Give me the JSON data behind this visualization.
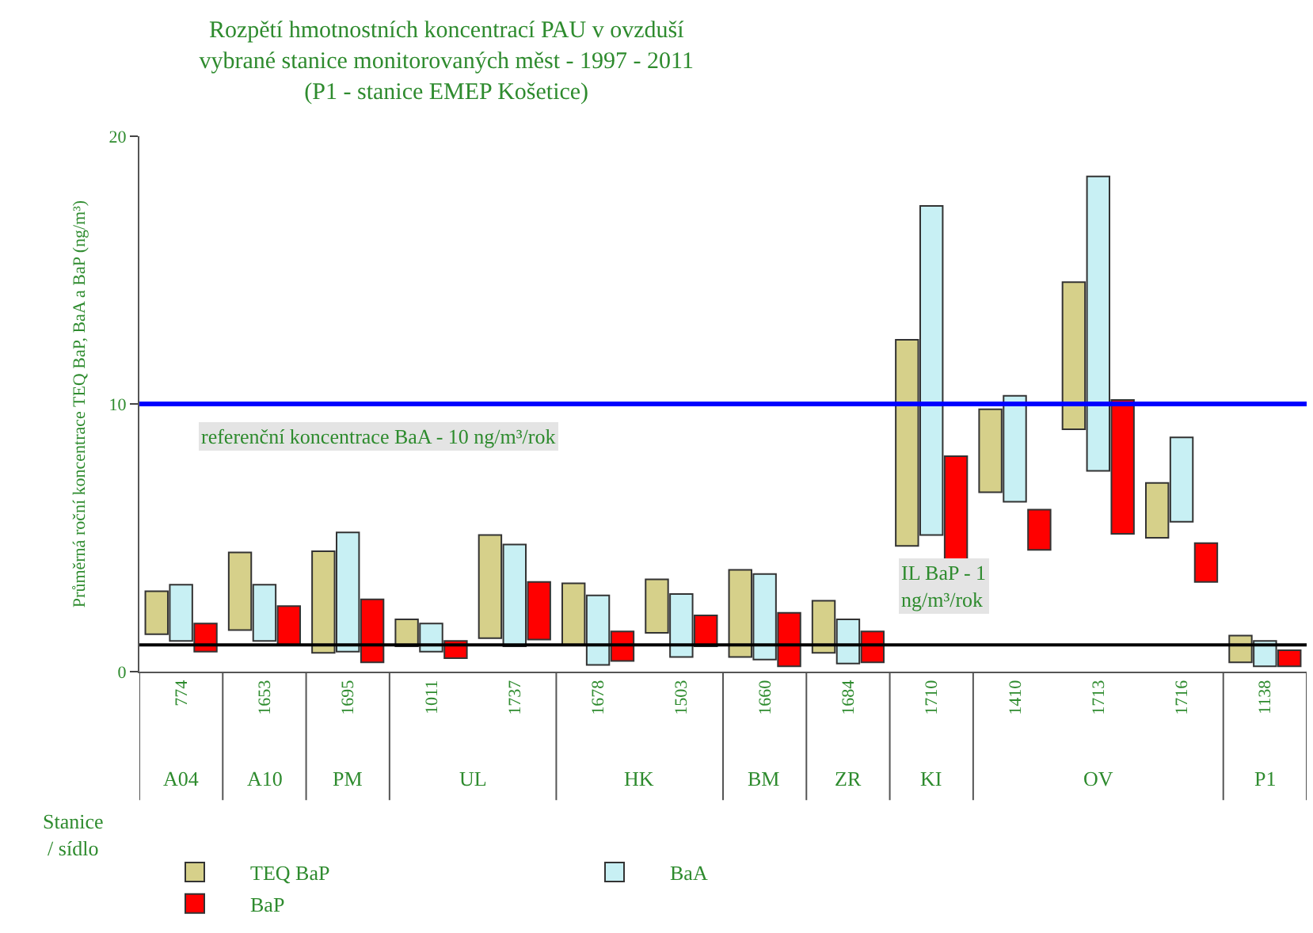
{
  "chart_data": {
    "type": "bar",
    "title": "Rozpětí hmotnostních koncentrací PAU v ovzduší\nvybrané stanice monitorovaných měst - 1997 - 2011\n(P1 - stanice EMEP Košetice)",
    "ylabel": "Průměrná roční koncentrace TEQ BaP, BaA a BaP (ng/m³)",
    "categories": [
      "774",
      "1653",
      "1695",
      "1011",
      "1737",
      "1678",
      "1503",
      "1660",
      "1684",
      "1710",
      "1410",
      "1713",
      "1716",
      "1138"
    ],
    "series": [
      {
        "name": "TEQ BaP",
        "color": "#d6d08a",
        "base": [
          1.4,
          1.55,
          0.7,
          0.95,
          1.25,
          1.0,
          1.45,
          0.55,
          0.7,
          4.7,
          6.7,
          9.05,
          5.0,
          0.35
        ],
        "values": [
          1.6,
          2.9,
          3.8,
          1.0,
          3.85,
          2.3,
          2.0,
          3.25,
          1.95,
          7.7,
          3.1,
          5.5,
          2.05,
          1.0
        ]
      },
      {
        "name": "BaA",
        "color": "#c8f0f4",
        "base": [
          1.15,
          1.15,
          0.75,
          0.75,
          0.95,
          0.25,
          0.55,
          0.45,
          0.3,
          5.1,
          6.35,
          7.5,
          5.6,
          0.2
        ],
        "values": [
          2.1,
          2.1,
          4.45,
          1.05,
          3.8,
          2.6,
          2.35,
          3.2,
          1.65,
          12.3,
          3.95,
          11.0,
          3.15,
          0.95
        ]
      },
      {
        "name": "BaP",
        "color": "#ff0000",
        "base": [
          0.75,
          1.0,
          0.35,
          0.5,
          1.2,
          0.4,
          0.95,
          0.2,
          0.35,
          3.05,
          4.55,
          5.15,
          3.35,
          0.2
        ],
        "values": [
          1.05,
          1.45,
          2.35,
          0.65,
          2.15,
          1.1,
          1.15,
          2.0,
          1.15,
          5.0,
          1.5,
          5.0,
          1.45,
          0.6
        ]
      }
    ],
    "ylim": [
      0,
      20
    ],
    "yticks": [
      0,
      10,
      20
    ],
    "grid": false,
    "legend": "bottom",
    "ref_lines": [
      {
        "axis": "y",
        "value": 10,
        "label": "referenční koncentrace BaA - 10 ng/m³/rok",
        "color": "#0000ff"
      },
      {
        "axis": "y",
        "value": 1,
        "label": "IL BaP - 1\nng/m³/rok",
        "color": "#000000"
      }
    ],
    "annotations": [
      "A04",
      "A10",
      "PM",
      "UL",
      "HK",
      "BM",
      "ZR",
      "KI",
      "OV",
      "P1",
      "Stanice\n/ sídlo"
    ]
  }
}
